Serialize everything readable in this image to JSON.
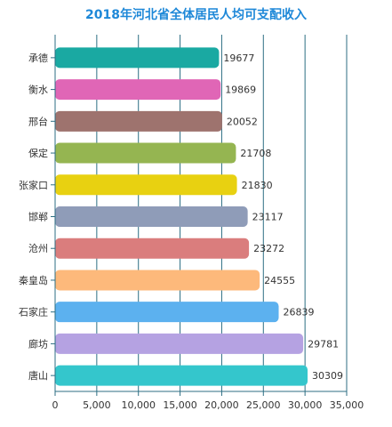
{
  "chart_data": {
    "type": "bar",
    "orientation": "horizontal",
    "title": "2018年河北省全体居民人均可支配收入",
    "xlabel": "",
    "ylabel": "",
    "xlim": [
      0,
      35000
    ],
    "x_ticks": [
      0,
      5000,
      10000,
      15000,
      20000,
      25000,
      30000,
      35000
    ],
    "x_tick_labels": [
      "0",
      "5,000",
      "10,000",
      "15,000",
      "20,000",
      "25,000",
      "30,000",
      "35,000"
    ],
    "grid": "vertical",
    "legend": "none",
    "categories": [
      "承德",
      "衡水",
      "邢台",
      "保定",
      "张家口",
      "邯郸",
      "沧州",
      "秦皇岛",
      "石家庄",
      "廊坊",
      "唐山"
    ],
    "values": [
      19677,
      19869,
      20052,
      21708,
      21830,
      23117,
      23272,
      24555,
      26839,
      29781,
      30309
    ],
    "value_labels": [
      "19677",
      "19869",
      "20052",
      "21708",
      "21830",
      "23117",
      "23272",
      "24555",
      "26839",
      "29781",
      "30309"
    ],
    "colors": [
      "#1aa9a2",
      "#e066b6",
      "#9e736e",
      "#95b551",
      "#e8d111",
      "#8f9cb8",
      "#da7d7d",
      "#fdb97b",
      "#5cb1ef",
      "#b5a2e2",
      "#34c6cc"
    ]
  },
  "style": {
    "title_color": "#1e88d8",
    "axis_color": "#2c6e83",
    "grid_color": "#2c6e83",
    "text_color": "#333333"
  }
}
